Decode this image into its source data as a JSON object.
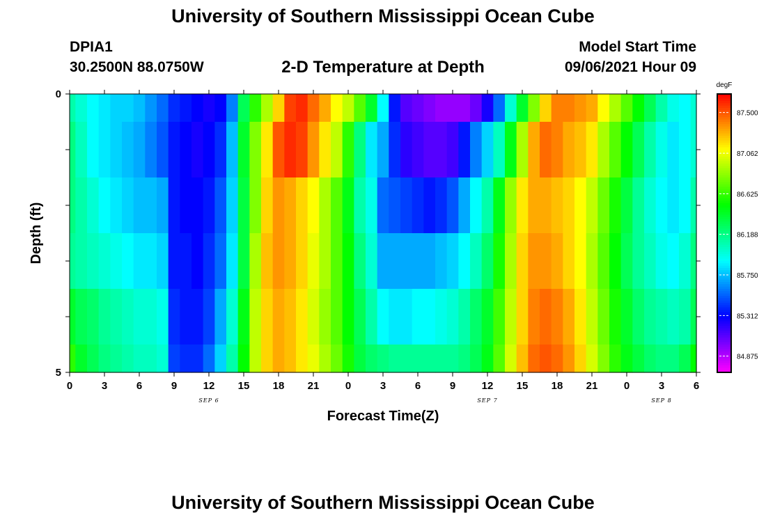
{
  "header": {
    "title": "University of Southern Mississippi Ocean Cube",
    "station": "DPIA1",
    "coordinates": "30.2500N  88.0750W",
    "subtitle": "2-D Temperature at Depth",
    "model_start_label": "Model Start Time",
    "model_start_value": "09/06/2021 Hour 09"
  },
  "footer": {
    "title": "University of Southern Mississippi Ocean Cube"
  },
  "colors": {
    "background": "#ffffff",
    "axis": "#000000"
  },
  "chart_data": {
    "type": "heatmap",
    "title": "2-D Temperature at Depth",
    "xlabel": "Forecast Time(Z)",
    "ylabel": "Depth (ft)",
    "xlim": [
      0,
      54
    ],
    "ylim": [
      0,
      5
    ],
    "y_reversed": true,
    "x_tick_values": [
      0,
      3,
      6,
      9,
      12,
      15,
      18,
      21,
      24,
      27,
      30,
      33,
      36,
      39,
      42,
      45,
      48,
      51,
      54
    ],
    "x_tick_labels": [
      "0",
      "3",
      "6",
      "9",
      "12",
      "15",
      "18",
      "21",
      "0",
      "3",
      "6",
      "9",
      "12",
      "15",
      "18",
      "21",
      "0",
      "3",
      "6"
    ],
    "y_tick_labels": [
      "0",
      "5"
    ],
    "date_labels": [
      {
        "text": "SEP 6",
        "x": 12
      },
      {
        "text": "SEP 7",
        "x": 36
      },
      {
        "text": "SEP 8",
        "x": 51
      }
    ],
    "colorbar": {
      "unit": "degF",
      "ticks": [
        "87.500",
        "87.062",
        "86.625",
        "86.188",
        "85.750",
        "85.312",
        "84.875"
      ],
      "tick_values": [
        87.5,
        87.062,
        86.625,
        86.188,
        85.75,
        85.312,
        84.875
      ],
      "range": [
        84.7,
        87.7
      ]
    },
    "grid": false,
    "x": [
      0,
      1,
      2,
      3,
      4,
      5,
      6,
      7,
      8,
      9,
      10,
      11,
      12,
      13,
      14,
      15,
      16,
      17,
      18,
      19,
      20,
      21,
      22,
      23,
      24,
      25,
      26,
      27,
      28,
      29,
      30,
      31,
      32,
      33,
      34,
      35,
      36,
      37,
      38,
      39,
      40,
      41,
      42,
      43,
      44,
      45,
      46,
      47,
      48,
      49,
      50,
      51,
      52,
      53,
      54
    ],
    "depths": [
      0,
      1,
      2,
      3,
      4,
      5
    ],
    "values": [
      [
        86.1,
        86.0,
        85.9,
        85.85,
        85.8,
        85.8,
        85.75,
        85.65,
        85.55,
        85.4,
        85.35,
        85.3,
        85.25,
        85.3,
        85.6,
        86.3,
        86.6,
        86.9,
        87.2,
        87.55,
        87.6,
        87.45,
        87.3,
        87.1,
        86.95,
        86.7,
        86.4,
        85.9,
        85.35,
        85.1,
        85.05,
        85.0,
        84.95,
        84.95,
        84.95,
        85.05,
        85.25,
        85.55,
        86.0,
        86.4,
        86.8,
        87.2,
        87.4,
        87.4,
        87.35,
        87.3,
        87.1,
        86.9,
        86.7,
        86.5,
        86.3,
        86.1,
        85.95,
        85.9,
        86.0
      ],
      [
        86.2,
        86.05,
        85.9,
        85.85,
        85.8,
        85.75,
        85.7,
        85.6,
        85.5,
        85.35,
        85.3,
        85.25,
        85.3,
        85.4,
        85.75,
        86.4,
        86.8,
        87.15,
        87.5,
        87.6,
        87.55,
        87.35,
        87.15,
        86.95,
        86.6,
        86.2,
        85.85,
        85.7,
        85.4,
        85.2,
        85.15,
        85.1,
        85.1,
        85.15,
        85.35,
        85.6,
        85.8,
        86.05,
        86.45,
        86.9,
        87.3,
        87.45,
        87.4,
        87.3,
        87.25,
        87.15,
        86.9,
        86.7,
        86.5,
        86.3,
        86.1,
        85.95,
        85.85,
        85.9,
        86.0
      ],
      [
        86.2,
        86.1,
        86.0,
        85.9,
        85.85,
        85.8,
        85.75,
        85.75,
        85.7,
        85.35,
        85.3,
        85.3,
        85.35,
        85.5,
        85.8,
        86.35,
        86.8,
        87.2,
        87.35,
        87.3,
        87.2,
        87.1,
        86.9,
        86.7,
        86.45,
        86.1,
        85.95,
        85.55,
        85.5,
        85.45,
        85.4,
        85.35,
        85.4,
        85.5,
        85.7,
        85.9,
        86.1,
        86.45,
        86.85,
        87.15,
        87.3,
        87.3,
        87.25,
        87.2,
        87.1,
        86.95,
        86.75,
        86.55,
        86.35,
        86.15,
        86.0,
        85.9,
        85.85,
        85.9,
        86.1
      ],
      [
        86.15,
        86.1,
        86.05,
        86.0,
        85.95,
        85.9,
        85.85,
        85.85,
        85.8,
        85.35,
        85.35,
        85.3,
        85.4,
        85.55,
        85.85,
        86.35,
        86.9,
        87.25,
        87.35,
        87.3,
        87.2,
        87.05,
        86.9,
        86.7,
        86.5,
        86.2,
        86.0,
        85.7,
        85.7,
        85.7,
        85.7,
        85.7,
        85.75,
        85.8,
        85.9,
        86.05,
        86.25,
        86.55,
        86.9,
        87.2,
        87.35,
        87.35,
        87.3,
        87.2,
        87.1,
        86.9,
        86.7,
        86.5,
        86.3,
        86.15,
        86.05,
        85.95,
        85.9,
        86.0,
        86.2
      ],
      [
        86.4,
        86.3,
        86.25,
        86.15,
        86.1,
        86.05,
        86.0,
        86.0,
        85.95,
        85.4,
        85.35,
        85.35,
        85.45,
        85.7,
        86.0,
        86.45,
        86.95,
        87.2,
        87.3,
        87.25,
        87.15,
        87.0,
        86.85,
        86.7,
        86.5,
        86.3,
        86.1,
        85.9,
        85.85,
        85.85,
        85.9,
        85.9,
        85.95,
        86.0,
        86.1,
        86.25,
        86.4,
        86.65,
        86.95,
        87.2,
        87.4,
        87.45,
        87.4,
        87.3,
        87.15,
        86.95,
        86.75,
        86.55,
        86.4,
        86.25,
        86.15,
        86.1,
        86.05,
        86.1,
        86.3
      ],
      [
        86.6,
        86.4,
        86.3,
        86.2,
        86.15,
        86.1,
        86.05,
        86.05,
        86.0,
        85.45,
        85.4,
        85.4,
        85.55,
        85.8,
        86.1,
        86.5,
        86.95,
        87.2,
        87.3,
        87.25,
        87.15,
        87.05,
        86.9,
        86.75,
        86.55,
        86.35,
        86.25,
        86.2,
        86.15,
        86.15,
        86.15,
        86.15,
        86.15,
        86.15,
        86.2,
        86.3,
        86.45,
        86.7,
        87.0,
        87.25,
        87.45,
        87.5,
        87.45,
        87.35,
        87.2,
        87.0,
        86.8,
        86.6,
        86.45,
        86.35,
        86.25,
        86.2,
        86.2,
        86.3,
        86.5
      ]
    ]
  }
}
